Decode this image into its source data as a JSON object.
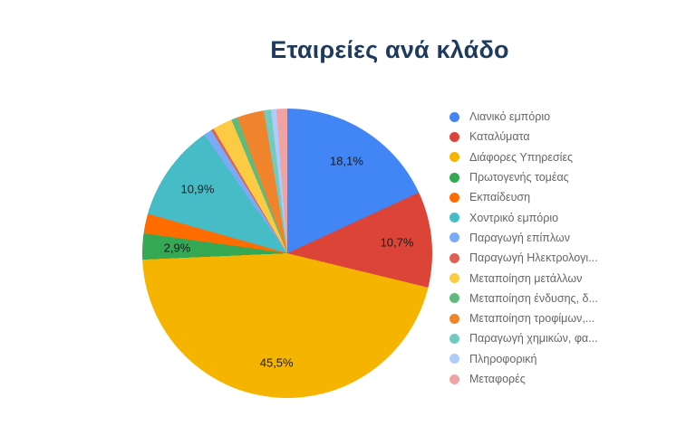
{
  "chart_data": {
    "type": "pie",
    "title": "Εταιρείες ανά κλάδο",
    "legend_position": "right",
    "start_angle_deg": 0,
    "value_unit": "percent",
    "decimal_separator": ",",
    "slices": [
      {
        "label": "Λιανικό εμπόριο",
        "value_pct": 18.1,
        "display_label": "18,1%",
        "color": "#4285F4"
      },
      {
        "label": "Καταλύματα",
        "value_pct": 10.7,
        "display_label": "10,7%",
        "color": "#DB4437"
      },
      {
        "label": "Διάφορες Υπηρεσίες",
        "value_pct": 45.5,
        "display_label": "45,5%",
        "color": "#F5B400"
      },
      {
        "label": "Πρωτογενής τομέας",
        "value_pct": 2.9,
        "display_label": "2,9%",
        "color": "#34A853"
      },
      {
        "label": "Εκπαίδευση",
        "value_pct": 2.2,
        "display_label": null,
        "color": "#FF6D01"
      },
      {
        "label": "Χοντρικό εμπόριο",
        "value_pct": 10.9,
        "display_label": "10,9%",
        "color": "#46BDC6"
      },
      {
        "label": "Παραγωγή επίπλων",
        "value_pct": 0.9,
        "display_label": null,
        "color": "#7BAAF7"
      },
      {
        "label": "Παραγωγή Ηλεκτρολογι...",
        "value_pct": 0.3,
        "display_label": null,
        "color": "#E06055"
      },
      {
        "label": "Μεταποίηση μετάλλων",
        "value_pct": 2.2,
        "display_label": null,
        "color": "#FBCB43"
      },
      {
        "label": "Μεταποίηση ένδυσης, δ...",
        "value_pct": 0.7,
        "display_label": null,
        "color": "#5FBA7D"
      },
      {
        "label": "Μεταποίηση τροφίμων,...",
        "value_pct": 3.0,
        "display_label": null,
        "color": "#F0842C"
      },
      {
        "label": "Παραγωγή χημικών, φα...",
        "value_pct": 0.8,
        "display_label": null,
        "color": "#73CBC0"
      },
      {
        "label": "Πληροφορική",
        "value_pct": 0.6,
        "display_label": null,
        "color": "#AECBFA"
      },
      {
        "label": "Μεταφορές",
        "value_pct": 1.2,
        "display_label": null,
        "color": "#F0A3A3"
      }
    ]
  }
}
